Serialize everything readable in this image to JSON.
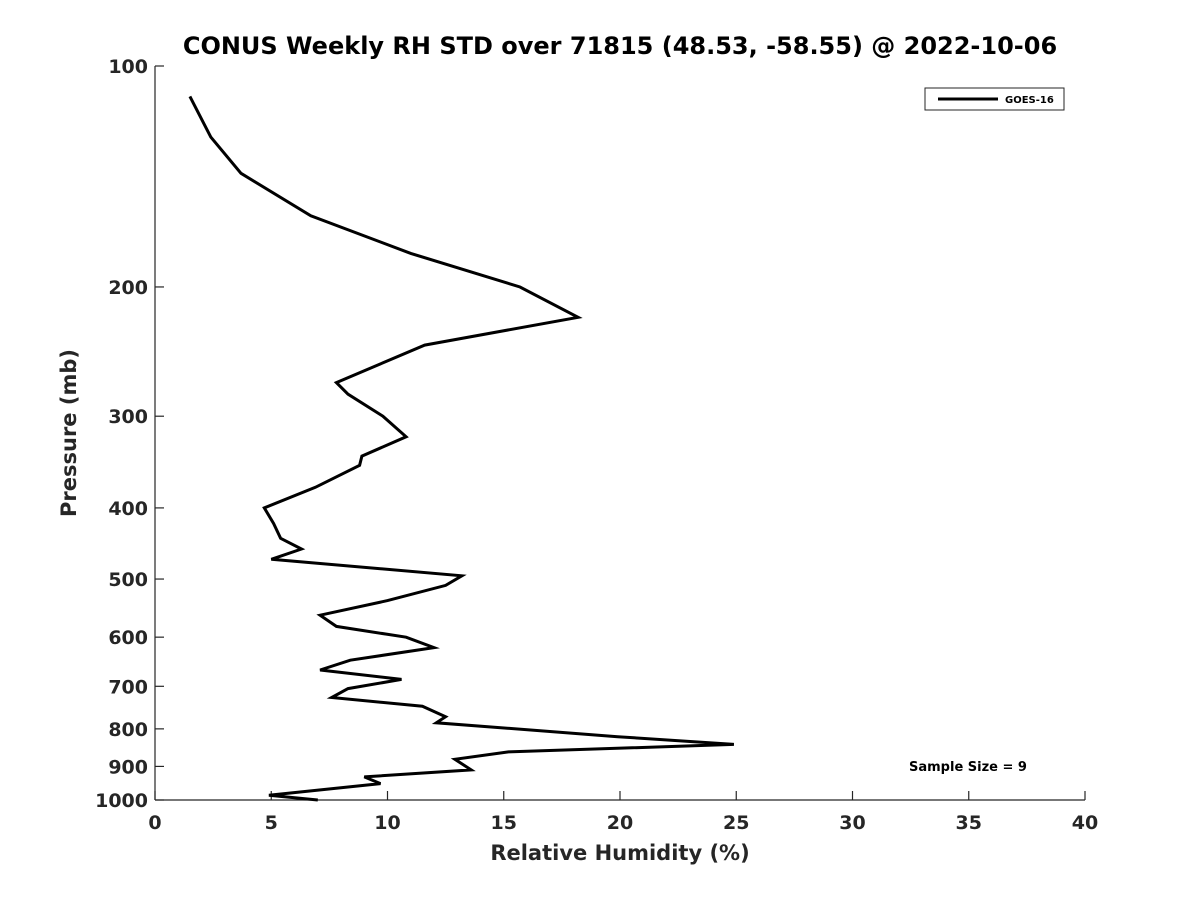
{
  "chart_data": {
    "type": "line",
    "title": "CONUS Weekly RH STD over 71815 (48.53, -58.55) @ 2022-10-06",
    "xlabel": "Relative Humidity (%)",
    "ylabel": "Pressure (mb)",
    "xlim": [
      0,
      40
    ],
    "ylim": [
      1000,
      100
    ],
    "yscale": "log",
    "y_reversed": true,
    "grid": false,
    "legend_position": "top-right",
    "xticks": [
      "0",
      "5",
      "10",
      "15",
      "20",
      "25",
      "30",
      "35",
      "40"
    ],
    "yticks": [
      "100",
      "200",
      "300",
      "400",
      "500",
      "600",
      "700",
      "800",
      "900",
      "1000"
    ],
    "series": [
      {
        "name": "GOES-16",
        "color": "#000000",
        "x": [
          7.0,
          4.9,
          9.7,
          9.0,
          13.6,
          12.9,
          15.2,
          24.9,
          19.9,
          12.1,
          12.5,
          11.5,
          7.6,
          8.3,
          10.6,
          7.1,
          8.4,
          12.0,
          10.8,
          7.8,
          7.1,
          10.0,
          12.5,
          13.2,
          5.0,
          6.3,
          5.4,
          5.1,
          4.7,
          6.9,
          8.8,
          8.9,
          10.8,
          9.8,
          8.3,
          7.8,
          11.6,
          18.2,
          15.7,
          11.0,
          6.7,
          3.7,
          2.4,
          1.5
        ],
        "y": [
          1000,
          985,
          950,
          930,
          910,
          880,
          860,
          840,
          820,
          785,
          770,
          745,
          725,
          705,
          685,
          665,
          645,
          620,
          600,
          580,
          560,
          535,
          510,
          495,
          470,
          455,
          440,
          420,
          400,
          375,
          350,
          340,
          320,
          300,
          280,
          270,
          240,
          220,
          200,
          180,
          160,
          140,
          125,
          110
        ]
      }
    ],
    "annotations": [
      "Sample Size = 9"
    ]
  }
}
